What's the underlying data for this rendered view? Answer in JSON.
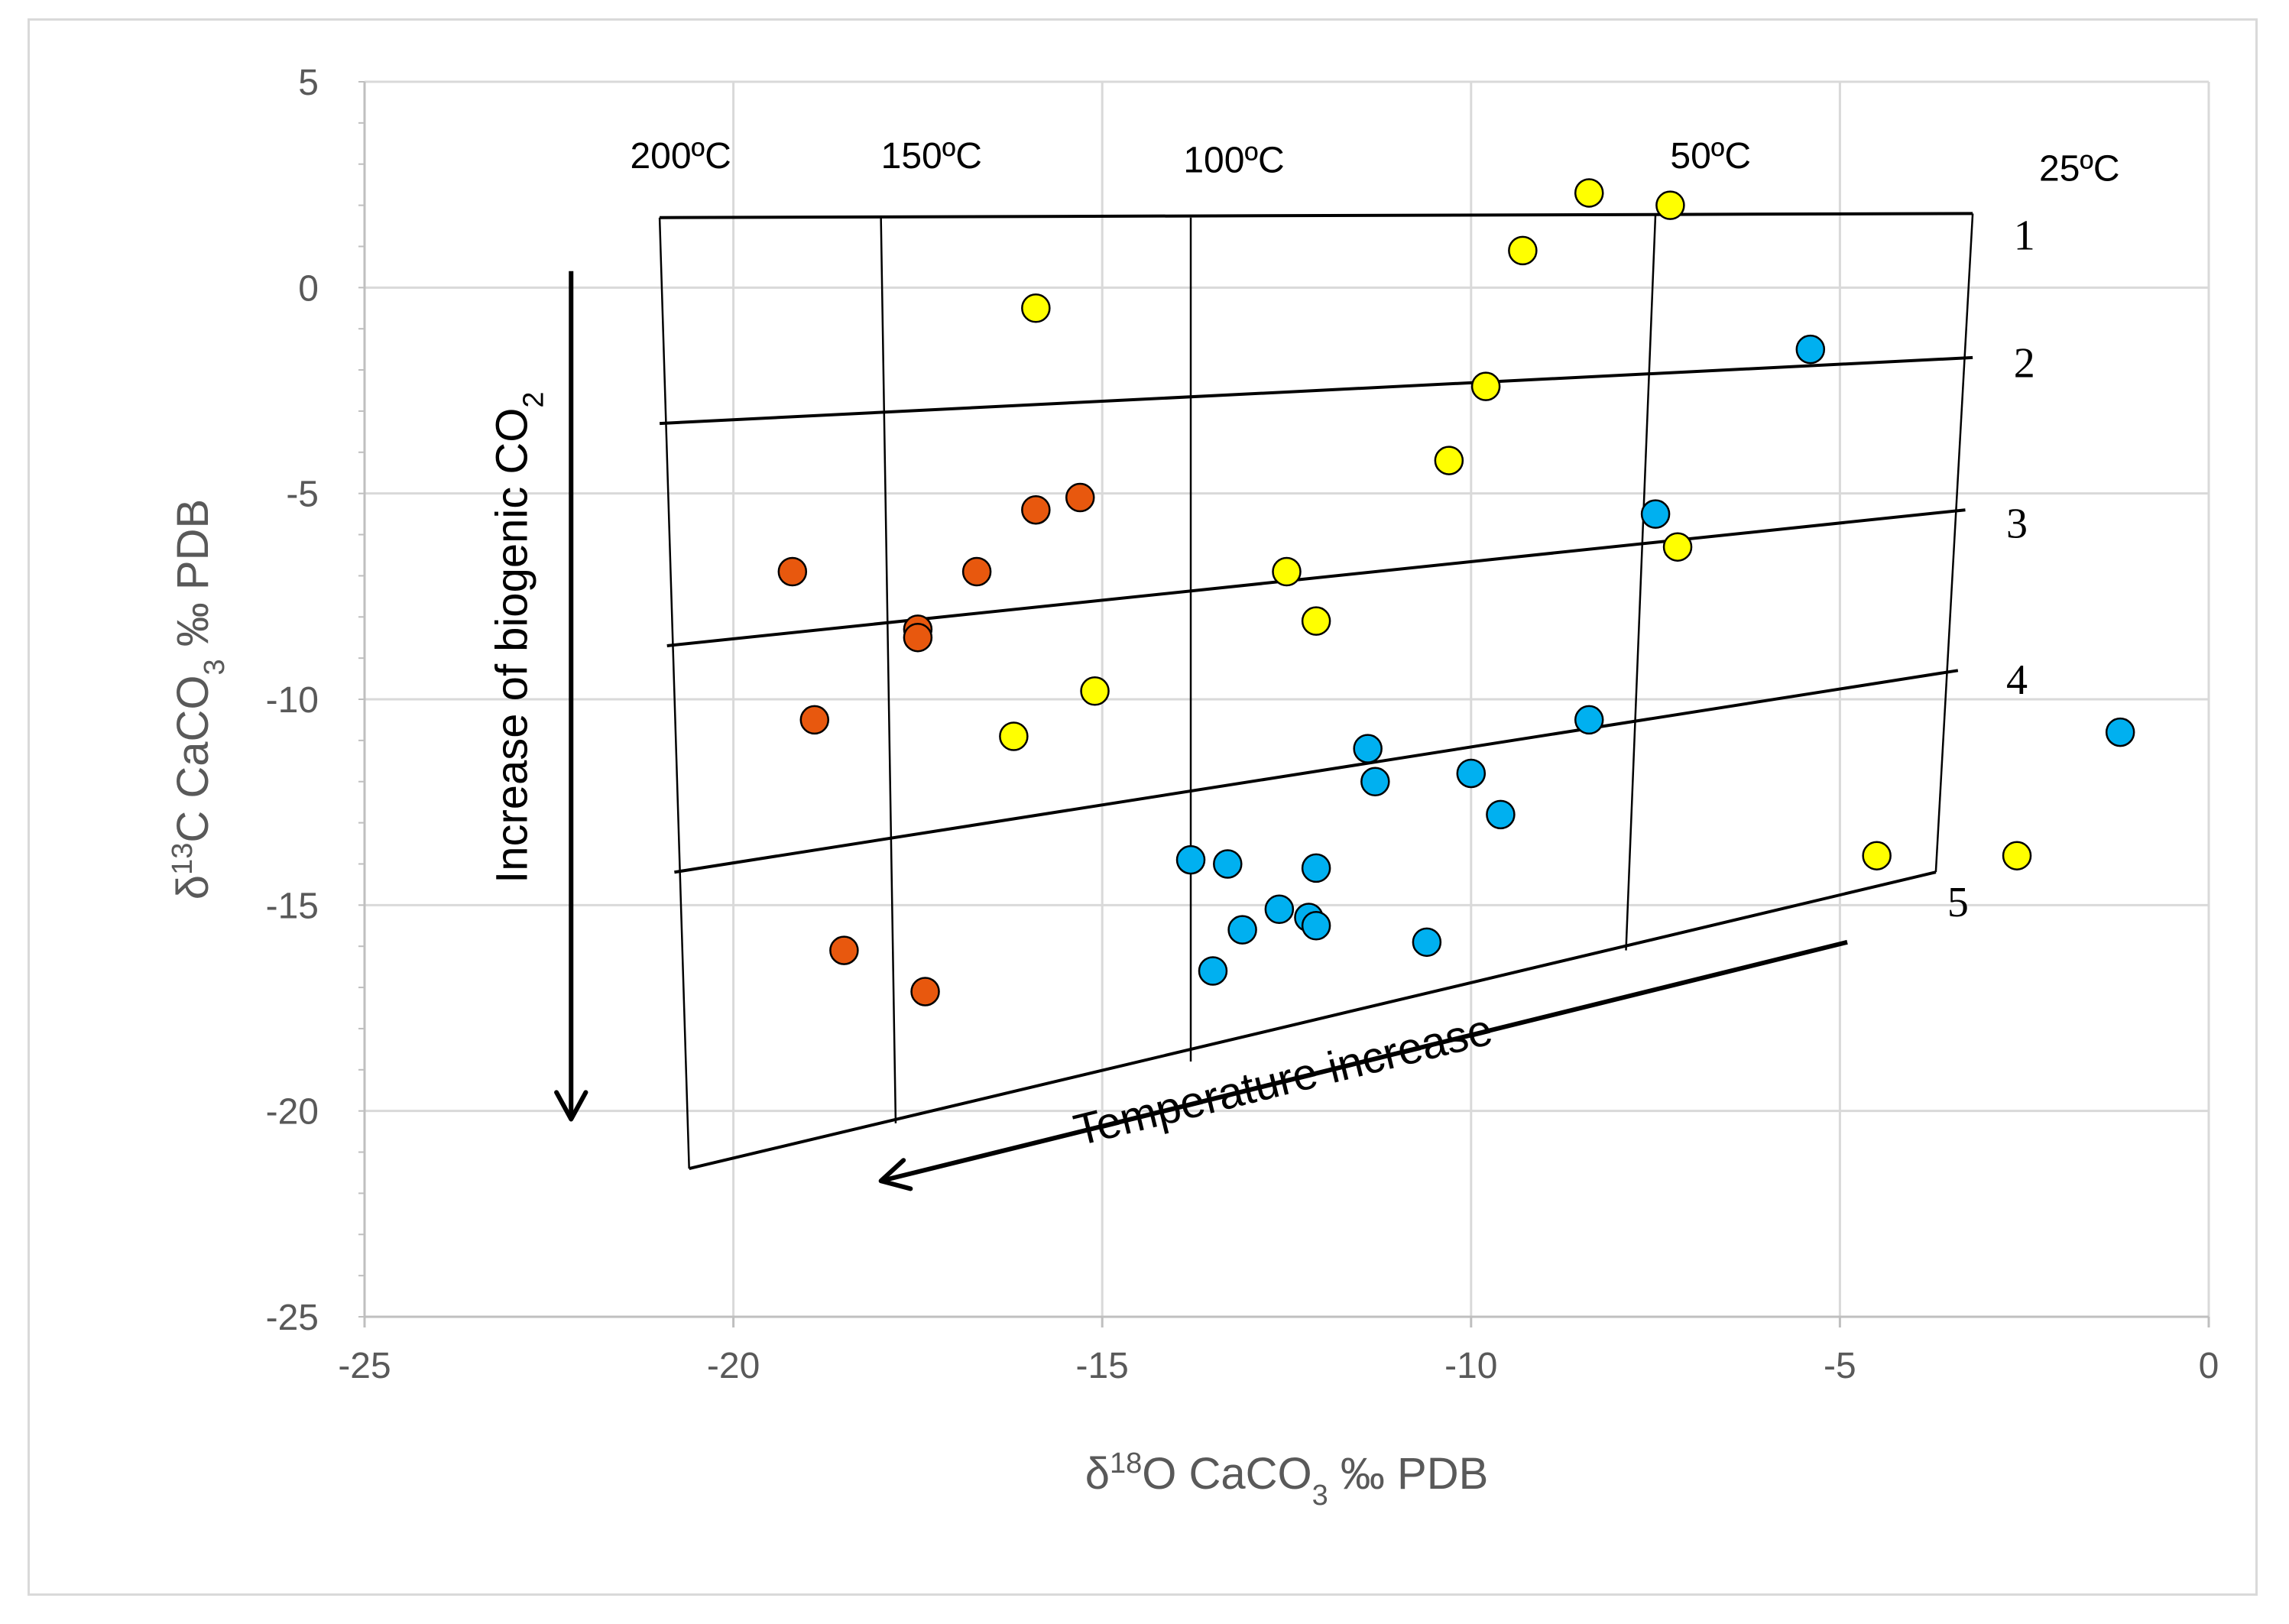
{
  "chart_data": {
    "type": "scatter",
    "xlabel": "δ¹⁸O CaCO₃ ‰ PDB",
    "xlabel_parts": [
      "δ",
      "18",
      "O CaCO",
      "3",
      " ‰ PDB"
    ],
    "ylabel": "δ¹³C CaCO₃ ‰ PDB",
    "ylabel_parts": [
      "δ",
      "13",
      "C CaCO",
      "3",
      " ‰ PDB"
    ],
    "xlim": [
      -25,
      0
    ],
    "ylim": [
      -25,
      5
    ],
    "x_ticks": [
      -25,
      -20,
      -15,
      -10,
      -5,
      0
    ],
    "y_ticks": [
      5,
      0,
      -5,
      -10,
      -15,
      -20,
      -25
    ],
    "grid": true,
    "colors": {
      "orange": "#e8580e",
      "yellow": "#ffff00",
      "blue": "#00b0f0",
      "grid": "#d9d9d9",
      "axis": "#bfbfbf",
      "line": "#000000"
    },
    "series": [
      {
        "name": "orange",
        "points": [
          [
            -19.2,
            -6.9
          ],
          [
            -18.9,
            -10.5
          ],
          [
            -18.5,
            -16.1
          ],
          [
            -17.5,
            -8.3
          ],
          [
            -17.5,
            -8.5
          ],
          [
            -17.4,
            -17.1
          ],
          [
            -16.7,
            -6.9
          ],
          [
            -15.9,
            -5.4
          ],
          [
            -15.3,
            -5.1
          ]
        ]
      },
      {
        "name": "yellow",
        "points": [
          [
            -15.9,
            -0.5
          ],
          [
            -16.2,
            -10.9
          ],
          [
            -15.1,
            -9.8
          ],
          [
            -12.5,
            -6.9
          ],
          [
            -12.1,
            -8.1
          ],
          [
            -10.3,
            -4.2
          ],
          [
            -9.8,
            -2.4
          ],
          [
            -9.3,
            0.9
          ],
          [
            -8.4,
            2.3
          ],
          [
            -7.3,
            2.0
          ],
          [
            -7.2,
            -6.3
          ],
          [
            -4.5,
            -13.8
          ],
          [
            -2.6,
            -13.8
          ]
        ]
      },
      {
        "name": "blue",
        "points": [
          [
            -5.4,
            -1.5
          ],
          [
            -7.5,
            -5.5
          ],
          [
            -8.4,
            -10.5
          ],
          [
            -1.2,
            -10.8
          ],
          [
            -11.4,
            -11.2
          ],
          [
            -11.3,
            -12.0
          ],
          [
            -10.0,
            -11.8
          ],
          [
            -9.6,
            -12.8
          ],
          [
            -13.8,
            -13.9
          ],
          [
            -13.3,
            -14.0
          ],
          [
            -12.1,
            -14.1
          ],
          [
            -12.6,
            -15.1
          ],
          [
            -12.2,
            -15.3
          ],
          [
            -12.1,
            -15.5
          ],
          [
            -13.1,
            -15.6
          ],
          [
            -13.5,
            -16.6
          ],
          [
            -10.6,
            -15.9
          ]
        ]
      }
    ],
    "isotherms": [
      {
        "label": "200ºC",
        "from": [
          -21.0,
          1.7
        ],
        "to": [
          -20.6,
          -21.4
        ]
      },
      {
        "label": "150ºC",
        "from": [
          -18.0,
          1.7
        ],
        "to": [
          -17.8,
          -20.3
        ]
      },
      {
        "label": "100ºC",
        "from": [
          -13.8,
          1.7
        ],
        "to": [
          -13.8,
          -18.8
        ]
      },
      {
        "label": "50ºC",
        "from": [
          -7.5,
          1.8
        ],
        "to": [
          -7.9,
          -16.1
        ]
      },
      {
        "label": "25ºC",
        "from": [
          -3.2,
          1.8
        ],
        "to": [
          -3.7,
          -14.2
        ]
      }
    ],
    "isotherm_label_positions": [
      [
        -21.4,
        2.9
      ],
      [
        -18.0,
        2.9
      ],
      [
        -13.9,
        2.8
      ],
      [
        -7.3,
        2.9
      ],
      [
        -2.3,
        2.6
      ]
    ],
    "zone_lines": [
      {
        "label": "1",
        "from": [
          -21.0,
          1.7
        ],
        "to": [
          -3.2,
          1.8
        ],
        "label_at": [
          -2.5,
          1.3
        ]
      },
      {
        "label": "2",
        "from": [
          -21.0,
          -3.3
        ],
        "to": [
          -3.2,
          -1.7
        ],
        "label_at": [
          -2.5,
          -1.8
        ]
      },
      {
        "label": "3",
        "from": [
          -20.9,
          -8.7
        ],
        "to": [
          -3.3,
          -5.4
        ],
        "label_at": [
          -2.6,
          -5.7
        ]
      },
      {
        "label": "4",
        "from": [
          -20.8,
          -14.2
        ],
        "to": [
          -3.4,
          -9.3
        ],
        "label_at": [
          -2.6,
          -9.5
        ]
      },
      {
        "label": "5",
        "from": [
          -20.6,
          -21.4
        ],
        "to": [
          -3.7,
          -14.2
        ],
        "label_at": [
          -3.4,
          -14.9
        ]
      }
    ],
    "annotations": {
      "biogenic": {
        "text_parts": [
          "Increase of biogenic CO",
          "2"
        ],
        "arrow_from": [
          -22.2,
          0.4
        ],
        "arrow_to": [
          -22.2,
          -20.2
        ],
        "text_at": [
          -22.8,
          -8.5
        ]
      },
      "temperature": {
        "text": "Temperature increase",
        "arrow_from": [
          -4.9,
          -15.9
        ],
        "arrow_to": [
          -18.0,
          -21.7
        ],
        "text_at": [
          -12.5,
          -19.6
        ]
      }
    }
  }
}
